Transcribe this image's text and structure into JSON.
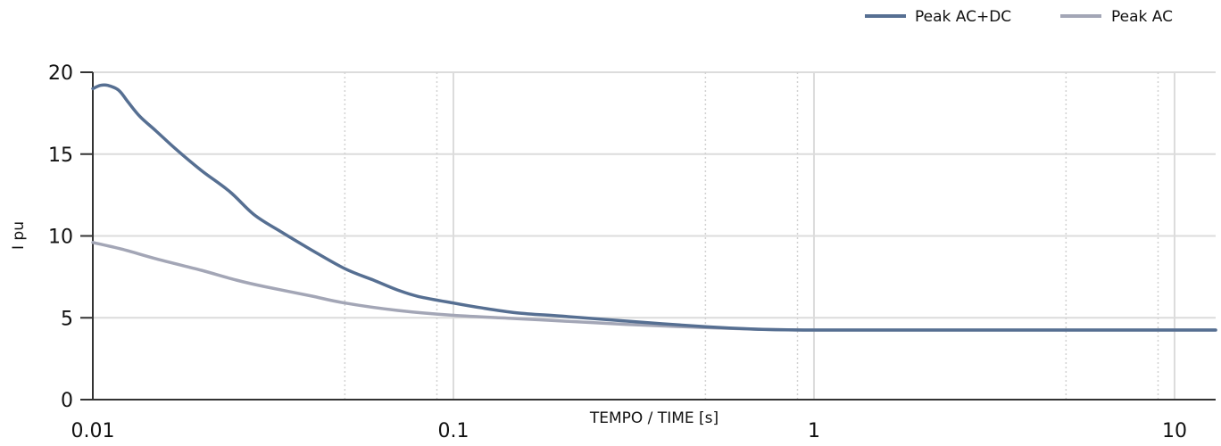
{
  "chart_data": {
    "type": "line",
    "title": "",
    "xlabel": "TEMPO / TIME [s]",
    "ylabel": "I pu",
    "xscale": "log",
    "xlim": [
      0.01,
      13
    ],
    "ylim": [
      0,
      20
    ],
    "x_ticks": [
      0.01,
      0.1,
      1,
      10
    ],
    "x_tick_labels": [
      "0.01",
      "0.1",
      "1",
      "10"
    ],
    "y_ticks": [
      0,
      5,
      10,
      15,
      20
    ],
    "y_tick_labels": [
      "0",
      "5",
      "10",
      "15",
      "20"
    ],
    "grid": true,
    "legend_position": "top-right",
    "series": [
      {
        "name": "Peak AC+DC",
        "color": "#566f92",
        "x": [
          0.01,
          0.0105,
          0.011,
          0.0118,
          0.0125,
          0.0135,
          0.015,
          0.017,
          0.02,
          0.024,
          0.028,
          0.033,
          0.04,
          0.05,
          0.06,
          0.07,
          0.08,
          0.1,
          0.12,
          0.15,
          0.2,
          0.3,
          0.5,
          0.7,
          1,
          2,
          5,
          10,
          13
        ],
        "y": [
          19.0,
          19.2,
          19.2,
          18.9,
          18.2,
          17.3,
          16.4,
          15.3,
          14.0,
          12.7,
          11.3,
          10.3,
          9.2,
          8.0,
          7.3,
          6.7,
          6.3,
          5.9,
          5.6,
          5.3,
          5.1,
          4.8,
          4.45,
          4.3,
          4.25,
          4.25,
          4.25,
          4.25,
          4.25
        ]
      },
      {
        "name": "Peak AC",
        "color": "#a3a6b6",
        "x": [
          0.01,
          0.012,
          0.015,
          0.02,
          0.025,
          0.03,
          0.04,
          0.05,
          0.07,
          0.1,
          0.15,
          0.2,
          0.3,
          0.5,
          0.7,
          1,
          2,
          5,
          10,
          13
        ],
        "y": [
          9.6,
          9.2,
          8.6,
          7.9,
          7.3,
          6.9,
          6.35,
          5.9,
          5.45,
          5.15,
          4.95,
          4.8,
          4.6,
          4.4,
          4.3,
          4.25,
          4.25,
          4.25,
          4.25,
          4.25
        ]
      }
    ]
  }
}
